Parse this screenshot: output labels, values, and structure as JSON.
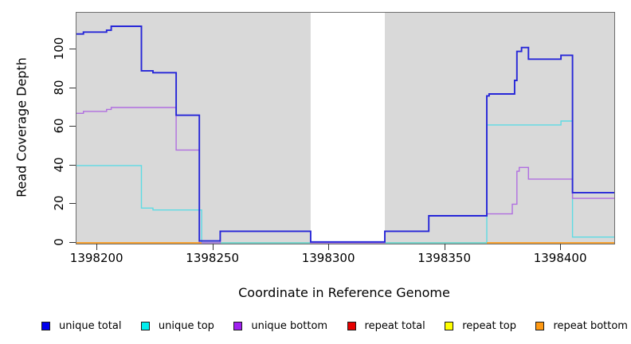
{
  "figure": {
    "xlabel": "Coordinate in Reference Genome",
    "ylabel": "Read Coverage Depth"
  },
  "chart_data": {
    "type": "line",
    "subtype": "step-coverage-plot",
    "title": "",
    "xlabel": "Coordinate in Reference Genome",
    "ylabel": "Read Coverage Depth",
    "x_range": [
      1398191,
      1398423
    ],
    "ylim": [
      0,
      119
    ],
    "x_ticks": [
      1398200,
      1398250,
      1398300,
      1398350,
      1398400
    ],
    "y_ticks": [
      0,
      20,
      40,
      60,
      80,
      100
    ],
    "grid": false,
    "plot_background": "#d9d9d9",
    "masked_region": {
      "x_start": 1398292,
      "x_end": 1398324,
      "color": "#ffffff"
    },
    "series": [
      {
        "name": "repeat total",
        "color": "#cc0000",
        "line_width": 1.2,
        "step_points": [
          [
            1398191,
            0
          ]
        ]
      },
      {
        "name": "repeat top",
        "color": "#ffff00",
        "line_width": 1.2,
        "step_points": [
          [
            1398191,
            0
          ]
        ]
      },
      {
        "name": "unique top",
        "color": "#5ddbe4",
        "line_width": 1.4,
        "step_points": [
          [
            1398191,
            40
          ],
          [
            1398219,
            18
          ],
          [
            1398224,
            17
          ],
          [
            1398245,
            0
          ],
          [
            1398368,
            61
          ],
          [
            1398400,
            63
          ],
          [
            1398405,
            3
          ]
        ]
      },
      {
        "name": "unique bottom",
        "color": "#b06ee0",
        "line_width": 1.4,
        "step_points": [
          [
            1398191,
            67
          ],
          [
            1398194,
            68
          ],
          [
            1398204,
            69
          ],
          [
            1398206,
            70
          ],
          [
            1398234,
            48
          ],
          [
            1398244,
            0
          ],
          [
            1398253,
            6
          ],
          [
            1398292,
            0
          ],
          [
            1398324,
            6
          ],
          [
            1398343,
            14
          ],
          [
            1398368,
            15
          ],
          [
            1398379,
            20
          ],
          [
            1398381,
            37
          ],
          [
            1398382,
            39
          ],
          [
            1398386,
            33
          ],
          [
            1398405,
            23
          ]
        ]
      },
      {
        "name": "unique total",
        "color": "#2626d8",
        "line_width": 1.9,
        "step_points": [
          [
            1398191,
            108
          ],
          [
            1398194,
            109
          ],
          [
            1398204,
            110
          ],
          [
            1398206,
            112
          ],
          [
            1398219,
            89
          ],
          [
            1398224,
            88
          ],
          [
            1398234,
            66
          ],
          [
            1398244,
            1
          ],
          [
            1398253,
            6
          ],
          [
            1398292,
            0.5
          ],
          [
            1398324,
            6
          ],
          [
            1398343,
            14
          ],
          [
            1398368,
            76
          ],
          [
            1398369,
            77
          ],
          [
            1398380,
            84
          ],
          [
            1398381,
            99
          ],
          [
            1398383,
            101
          ],
          [
            1398386,
            95
          ],
          [
            1398400,
            97
          ],
          [
            1398405,
            26
          ]
        ]
      },
      {
        "name": "repeat bottom",
        "color": "#ff9a1a",
        "line_width": 1.6,
        "step_points": [
          [
            1398191,
            0
          ]
        ],
        "visible_segments": [
          [
            1398191,
            1398245
          ],
          [
            1398368,
            1398423
          ]
        ]
      }
    ],
    "zero_line_blend": {
      "color": "#85c785",
      "x_start": 1398245,
      "x_end": 1398368,
      "value": 0
    },
    "legend_position": "bottom"
  },
  "legend": {
    "items": [
      {
        "label": "unique total",
        "color": "#0000ee"
      },
      {
        "label": "unique top",
        "color": "#00eeee"
      },
      {
        "label": "unique bottom",
        "color": "#a020f0"
      },
      {
        "label": "repeat total",
        "color": "#e60000"
      },
      {
        "label": "repeat top",
        "color": "#ffff00"
      },
      {
        "label": "repeat bottom",
        "color": "#ff9912"
      }
    ]
  }
}
